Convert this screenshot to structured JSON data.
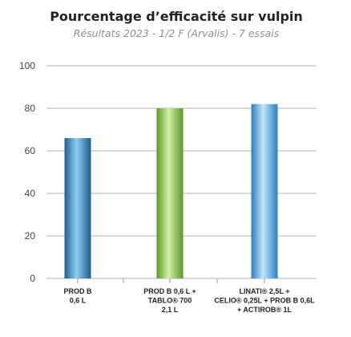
{
  "chart_data": {
    "type": "bar",
    "title": "Pourcentage d’efficacité sur vulpin",
    "subtitle": "Résultats 2023 - 1/2 F (Arvalis) - 7 essais",
    "categories": [
      [
        "PROD B",
        "0,6 L"
      ],
      [
        "PROD B 0,6 L +",
        "TABLO® 700",
        "2,1 L"
      ],
      [
        "LINATI® 2,5L +",
        "CELIO® 0,25L + PROB B 0,6L",
        "+ ACTIROB® 1L"
      ]
    ],
    "values": [
      66,
      80,
      82
    ],
    "colors": [
      "#2f7fb3",
      "#88c43f",
      "#3a96d6"
    ],
    "ylim": [
      0,
      100
    ],
    "yticks": [
      "0",
      "20",
      "40",
      "60",
      "80",
      "100"
    ],
    "grid": true,
    "xlabel": "",
    "ylabel": ""
  }
}
